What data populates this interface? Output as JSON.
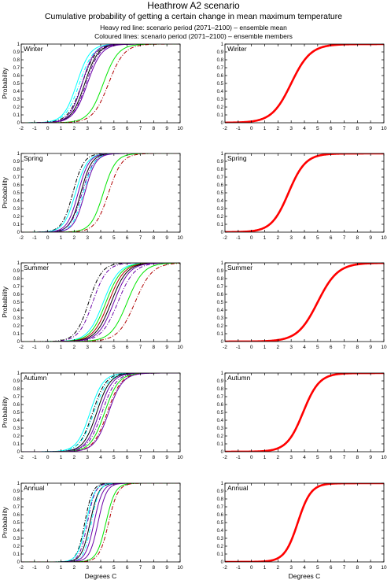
{
  "title": "Heathrow A2 scenario",
  "subtitle": "Cumulative probability of getting a certain change in mean maximum temperature",
  "notes": [
    "Heavy red line: scenario period (2071–2100) – ensemble mean",
    "Coloured lines: scenario period (2071–2100) – ensemble members"
  ],
  "xlabel": "Degrees C",
  "ylabel": "Probability",
  "colors": {
    "ensemble_mean": "#ff0000",
    "members": [
      "#00ffff",
      "#000000",
      "#6a00a8",
      "#00e600",
      "#b00000"
    ]
  },
  "chart_data": [
    {
      "type": "line",
      "panel": "Winter",
      "column": "ensemble members",
      "xlim": [
        -2,
        10
      ],
      "ylim": [
        0,
        1
      ],
      "x_ticks": [
        -2,
        -1,
        0,
        1,
        2,
        3,
        4,
        5,
        6,
        7,
        8,
        9,
        10
      ],
      "y_ticks": [
        0,
        0.1,
        0.2,
        0.3,
        0.4,
        0.5,
        0.6,
        0.7,
        0.8,
        0.9,
        1
      ],
      "series": [
        {
          "color": "#00ffff",
          "style": "solid",
          "median": 2.2,
          "spread": 0.85
        },
        {
          "color": "#00ffff",
          "style": "dashdot",
          "median": 2.4,
          "spread": 0.9
        },
        {
          "color": "#000000",
          "style": "dashdot",
          "median": 2.6,
          "spread": 0.9
        },
        {
          "color": "#000000",
          "style": "solid",
          "median": 2.8,
          "spread": 0.85
        },
        {
          "color": "#6a00a8",
          "style": "solid",
          "median": 2.6,
          "spread": 0.8
        },
        {
          "color": "#6a00a8",
          "style": "dashdot",
          "median": 2.9,
          "spread": 0.85
        },
        {
          "color": "#6a00a8",
          "style": "solid",
          "median": 3.0,
          "spread": 0.9
        },
        {
          "color": "#00e600",
          "style": "solid",
          "median": 4.2,
          "spread": 0.95
        },
        {
          "color": "#b00000",
          "style": "dashdot",
          "median": 4.6,
          "spread": 1.0
        }
      ]
    },
    {
      "type": "line",
      "panel": "Winter",
      "column": "ensemble mean",
      "xlim": [
        -2,
        10
      ],
      "ylim": [
        0,
        1
      ],
      "x_ticks": [
        -2,
        -1,
        0,
        1,
        2,
        3,
        4,
        5,
        6,
        7,
        8,
        9,
        10
      ],
      "y_ticks": [
        0,
        0.1,
        0.2,
        0.3,
        0.4,
        0.5,
        0.6,
        0.7,
        0.8,
        0.9,
        1
      ],
      "series": [
        {
          "color": "#ff0000",
          "style": "heavy",
          "median": 3.0,
          "spread": 1.25
        }
      ]
    },
    {
      "type": "line",
      "panel": "Spring",
      "column": "ensemble members",
      "xlim": [
        -2,
        10
      ],
      "ylim": [
        0,
        1
      ],
      "x_ticks": [
        -2,
        -1,
        0,
        1,
        2,
        3,
        4,
        5,
        6,
        7,
        8,
        9,
        10
      ],
      "y_ticks": [
        0,
        0.1,
        0.2,
        0.3,
        0.4,
        0.5,
        0.6,
        0.7,
        0.8,
        0.9,
        1
      ],
      "series": [
        {
          "color": "#000000",
          "style": "dashdot",
          "median": 1.9,
          "spread": 0.7
        },
        {
          "color": "#00ffff",
          "style": "solid",
          "median": 2.1,
          "spread": 0.75
        },
        {
          "color": "#6a00a8",
          "style": "solid",
          "median": 2.3,
          "spread": 0.7
        },
        {
          "color": "#000000",
          "style": "solid",
          "median": 2.5,
          "spread": 0.7
        },
        {
          "color": "#6a00a8",
          "style": "dashdot",
          "median": 2.6,
          "spread": 0.75
        },
        {
          "color": "#00ffff",
          "style": "dashdot",
          "median": 2.7,
          "spread": 0.7
        },
        {
          "color": "#6a00a8",
          "style": "solid",
          "median": 2.8,
          "spread": 0.7
        },
        {
          "color": "#00e600",
          "style": "solid",
          "median": 4.2,
          "spread": 0.8
        },
        {
          "color": "#b00000",
          "style": "dashdot",
          "median": 4.6,
          "spread": 0.85
        }
      ]
    },
    {
      "type": "line",
      "panel": "Spring",
      "column": "ensemble mean",
      "xlim": [
        -2,
        10
      ],
      "ylim": [
        0,
        1
      ],
      "x_ticks": [
        -2,
        -1,
        0,
        1,
        2,
        3,
        4,
        5,
        6,
        7,
        8,
        9,
        10
      ],
      "y_ticks": [
        0,
        0.1,
        0.2,
        0.3,
        0.4,
        0.5,
        0.6,
        0.7,
        0.8,
        0.9,
        1
      ],
      "series": [
        {
          "color": "#ff0000",
          "style": "heavy",
          "median": 2.8,
          "spread": 1.1
        }
      ]
    },
    {
      "type": "line",
      "panel": "Summer",
      "column": "ensemble members",
      "xlim": [
        -2,
        10
      ],
      "ylim": [
        0,
        1
      ],
      "x_ticks": [
        -2,
        -1,
        0,
        1,
        2,
        3,
        4,
        5,
        6,
        7,
        8,
        9,
        10
      ],
      "y_ticks": [
        0,
        0.1,
        0.2,
        0.3,
        0.4,
        0.5,
        0.6,
        0.7,
        0.8,
        0.9,
        1
      ],
      "series": [
        {
          "color": "#000000",
          "style": "dashdot",
          "median": 3.1,
          "spread": 0.85
        },
        {
          "color": "#6a00a8",
          "style": "dashdot",
          "median": 3.4,
          "spread": 0.9
        },
        {
          "color": "#00ffff",
          "style": "solid",
          "median": 4.2,
          "spread": 1.0
        },
        {
          "color": "#00e600",
          "style": "solid",
          "median": 4.4,
          "spread": 1.0
        },
        {
          "color": "#b00000",
          "style": "solid",
          "median": 4.6,
          "spread": 1.0
        },
        {
          "color": "#000000",
          "style": "solid",
          "median": 4.8,
          "spread": 1.0
        },
        {
          "color": "#6a00a8",
          "style": "solid",
          "median": 5.0,
          "spread": 1.0
        },
        {
          "color": "#6a00a8",
          "style": "dashdot",
          "median": 5.3,
          "spread": 1.05
        },
        {
          "color": "#00e600",
          "style": "solid",
          "median": 6.0,
          "spread": 1.05
        },
        {
          "color": "#b00000",
          "style": "dashdot",
          "median": 6.6,
          "spread": 1.1
        }
      ]
    },
    {
      "type": "line",
      "panel": "Summer",
      "column": "ensemble mean",
      "xlim": [
        -2,
        10
      ],
      "ylim": [
        0,
        1
      ],
      "x_ticks": [
        -2,
        -1,
        0,
        1,
        2,
        3,
        4,
        5,
        6,
        7,
        8,
        9,
        10
      ],
      "y_ticks": [
        0,
        0.1,
        0.2,
        0.3,
        0.4,
        0.5,
        0.6,
        0.7,
        0.8,
        0.9,
        1
      ],
      "series": [
        {
          "color": "#ff0000",
          "style": "heavy",
          "median": 5.0,
          "spread": 1.3
        }
      ]
    },
    {
      "type": "line",
      "panel": "Autumn",
      "column": "ensemble members",
      "xlim": [
        -2,
        10
      ],
      "ylim": [
        0,
        1
      ],
      "x_ticks": [
        -2,
        -1,
        0,
        1,
        2,
        3,
        4,
        5,
        6,
        7,
        8,
        9,
        10
      ],
      "y_ticks": [
        0,
        0.1,
        0.2,
        0.3,
        0.4,
        0.5,
        0.6,
        0.7,
        0.8,
        0.9,
        1
      ],
      "series": [
        {
          "color": "#00ffff",
          "style": "solid",
          "median": 3.2,
          "spread": 0.85
        },
        {
          "color": "#000000",
          "style": "dashdot",
          "median": 3.4,
          "spread": 0.85
        },
        {
          "color": "#00ffff",
          "style": "dashdot",
          "median": 3.5,
          "spread": 0.9
        },
        {
          "color": "#000000",
          "style": "solid",
          "median": 3.7,
          "spread": 0.85
        },
        {
          "color": "#6a00a8",
          "style": "solid",
          "median": 3.9,
          "spread": 0.85
        },
        {
          "color": "#6a00a8",
          "style": "dashdot",
          "median": 4.1,
          "spread": 0.9
        },
        {
          "color": "#00e600",
          "style": "solid",
          "median": 4.3,
          "spread": 0.9
        },
        {
          "color": "#b00000",
          "style": "dashdot",
          "median": 4.5,
          "spread": 0.9
        },
        {
          "color": "#6a00a8",
          "style": "solid",
          "median": 4.6,
          "spread": 0.9
        }
      ]
    },
    {
      "type": "line",
      "panel": "Autumn",
      "column": "ensemble mean",
      "xlim": [
        -2,
        10
      ],
      "ylim": [
        0,
        1
      ],
      "x_ticks": [
        -2,
        -1,
        0,
        1,
        2,
        3,
        4,
        5,
        6,
        7,
        8,
        9,
        10
      ],
      "y_ticks": [
        0,
        0.1,
        0.2,
        0.3,
        0.4,
        0.5,
        0.6,
        0.7,
        0.8,
        0.9,
        1
      ],
      "series": [
        {
          "color": "#ff0000",
          "style": "heavy",
          "median": 3.9,
          "spread": 1.05
        }
      ]
    },
    {
      "type": "line",
      "panel": "Annual",
      "column": "ensemble members",
      "xlim": [
        -2,
        10
      ],
      "ylim": [
        0,
        1
      ],
      "x_ticks": [
        -2,
        -1,
        0,
        1,
        2,
        3,
        4,
        5,
        6,
        7,
        8,
        9,
        10
      ],
      "y_ticks": [
        0,
        0.1,
        0.2,
        0.3,
        0.4,
        0.5,
        0.6,
        0.7,
        0.8,
        0.9,
        1
      ],
      "series": [
        {
          "color": "#000000",
          "style": "dashdot",
          "median": 2.8,
          "spread": 0.5
        },
        {
          "color": "#00ffff",
          "style": "solid",
          "median": 2.9,
          "spread": 0.55
        },
        {
          "color": "#6a00a8",
          "style": "dashdot",
          "median": 3.0,
          "spread": 0.5
        },
        {
          "color": "#000000",
          "style": "solid",
          "median": 3.2,
          "spread": 0.55
        },
        {
          "color": "#00ffff",
          "style": "dashdot",
          "median": 3.3,
          "spread": 0.5
        },
        {
          "color": "#6a00a8",
          "style": "solid",
          "median": 3.5,
          "spread": 0.55
        },
        {
          "color": "#6a00a8",
          "style": "solid",
          "median": 3.8,
          "spread": 0.55
        },
        {
          "color": "#00e600",
          "style": "solid",
          "median": 4.4,
          "spread": 0.6
        },
        {
          "color": "#b00000",
          "style": "dashdot",
          "median": 4.6,
          "spread": 0.6
        }
      ]
    },
    {
      "type": "line",
      "panel": "Annual",
      "column": "ensemble mean",
      "xlim": [
        -2,
        10
      ],
      "ylim": [
        0,
        1
      ],
      "x_ticks": [
        -2,
        -1,
        0,
        1,
        2,
        3,
        4,
        5,
        6,
        7,
        8,
        9,
        10
      ],
      "y_ticks": [
        0,
        0.1,
        0.2,
        0.3,
        0.4,
        0.5,
        0.6,
        0.7,
        0.8,
        0.9,
        1
      ],
      "series": [
        {
          "color": "#ff0000",
          "style": "heavy",
          "median": 3.5,
          "spread": 0.85
        }
      ]
    }
  ]
}
